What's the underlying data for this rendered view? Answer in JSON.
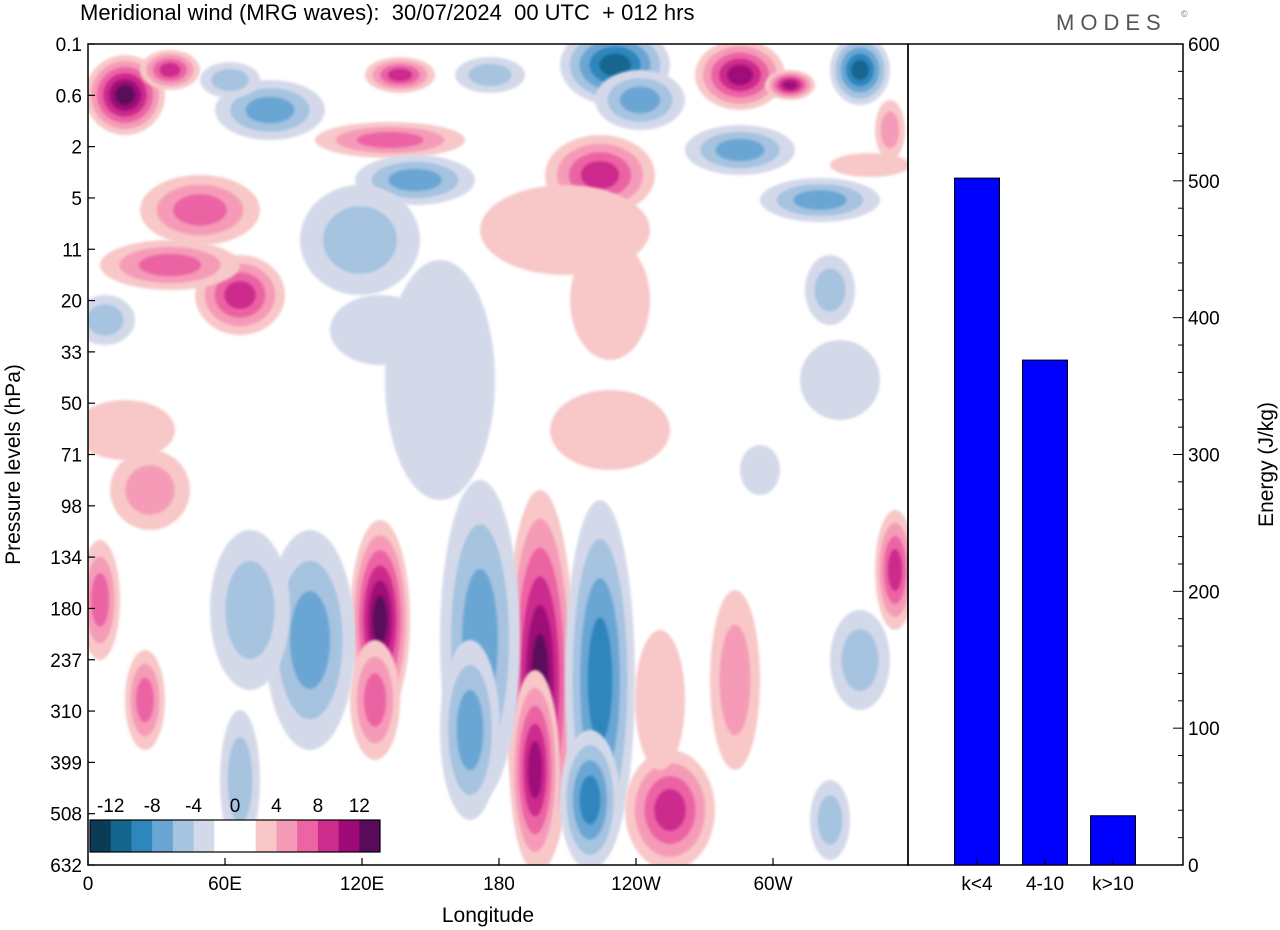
{
  "title": "Meridional wind (MRG waves):  30/07/2024  00 UTC  + 012 hrs",
  "brand": "MODES",
  "brand_mark": "©",
  "chart_data": [
    {
      "type": "heatmap",
      "xlabel": "Longitude",
      "ylabel": "Pressure levels (hPa)",
      "x_ticks": [
        "0",
        "60E",
        "120E",
        "180",
        "120W",
        "60W"
      ],
      "y_ticks": [
        "0.1",
        "0.6",
        "2",
        "5",
        "11",
        "20",
        "33",
        "50",
        "71",
        "98",
        "134",
        "180",
        "237",
        "310",
        "399",
        "508",
        "632"
      ],
      "colorbar": {
        "labels": [
          "-12",
          "-8",
          "-4",
          "0",
          "4",
          "8",
          "12"
        ],
        "colors": [
          "#0b3b55",
          "#14668f",
          "#2f86bd",
          "#6aa6d3",
          "#a6c3e0",
          "#d4d9ea",
          "#ffffff",
          "#ffffff",
          "#f8c8c8",
          "#f59bb7",
          "#ec64a4",
          "#cc2c8c",
          "#9e0b78",
          "#5a0a5a"
        ]
      }
    },
    {
      "type": "bar",
      "categories": [
        "k<4",
        "4-10",
        "k>10"
      ],
      "values": [
        502,
        369,
        36
      ],
      "ylabel": "Energy (J/kg)",
      "ylim": [
        0,
        600
      ],
      "y_ticks": [
        "0",
        "100",
        "200",
        "300",
        "400",
        "500",
        "600"
      ],
      "bar_color": "#0000ff"
    }
  ]
}
